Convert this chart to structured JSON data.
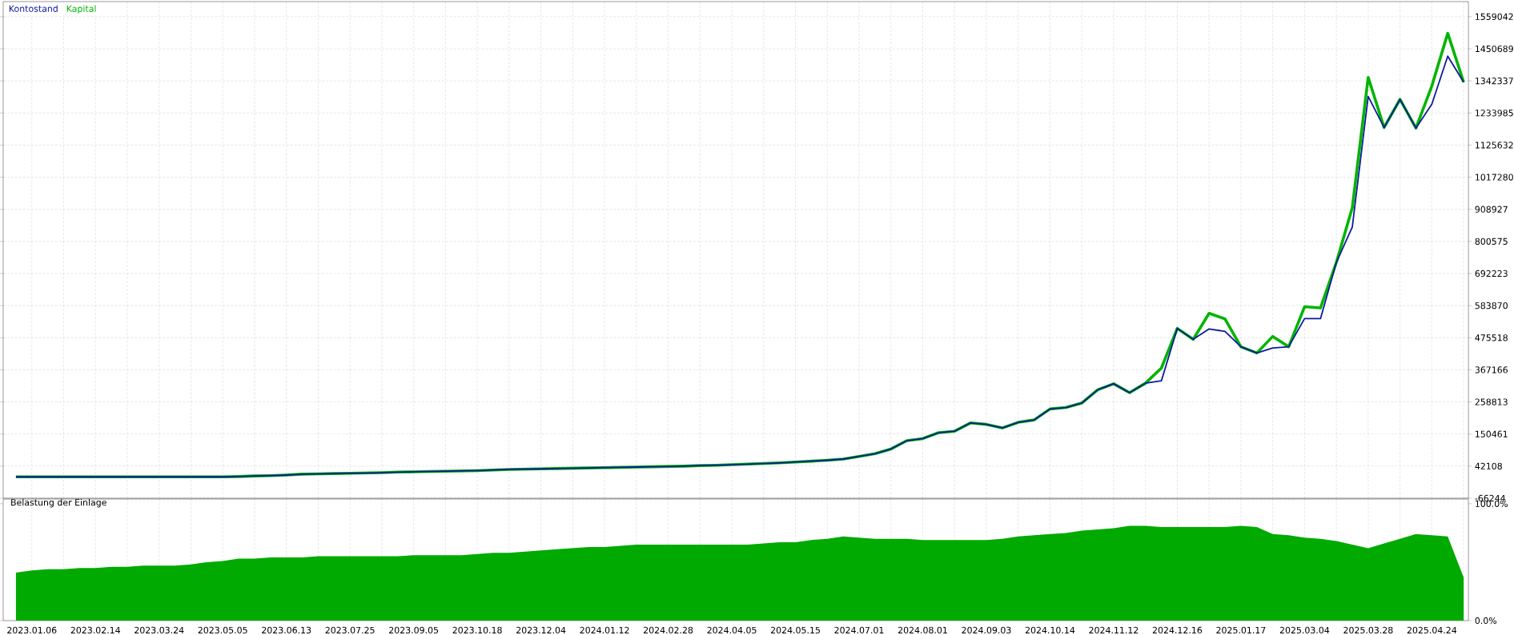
{
  "chart_data": [
    {
      "type": "line",
      "ylim": [
        -66244,
        1610000
      ],
      "grid": true,
      "legend": "top left",
      "tick_labels": "y",
      "categories": [
        null,
        "2023.01.06",
        null,
        null,
        null,
        "2023.02.14",
        null,
        null,
        null,
        "2023.03.24",
        null,
        null,
        null,
        "2023.05.05",
        null,
        null,
        null,
        "2023.06.13",
        null,
        null,
        null,
        "2023.07.25",
        null,
        null,
        null,
        "2023.09.05",
        null,
        null,
        null,
        "2023.10.18",
        null,
        null,
        null,
        "2023.12.04",
        null,
        null,
        null,
        "2024.01.12",
        null,
        null,
        null,
        "2024.02.28",
        null,
        null,
        null,
        "2024.04.05",
        null,
        null,
        null,
        "2024.05.15",
        null,
        null,
        null,
        "2024.07.01",
        null,
        null,
        null,
        "2024.08.01",
        null,
        null,
        null,
        "2024.09.03",
        null,
        null,
        null,
        "2024.10.14",
        null,
        null,
        null,
        "2024.11.12",
        null,
        null,
        null,
        "2024.12.16",
        null,
        null,
        null,
        "2025.01.17",
        null,
        null,
        null,
        "2025.03.04",
        null,
        null,
        null,
        "2025.03.28",
        null,
        null,
        null,
        "2025.04.24",
        null,
        null
      ],
      "yticks": [
        -66244,
        42108,
        150461,
        258813,
        367166,
        475518,
        583870,
        692223,
        800575,
        908927,
        1017280,
        1125632,
        1233985,
        1342337,
        1450689,
        1559042
      ],
      "series": [
        {
          "name": "Kontostand",
          "color": "#0c1a9c",
          "values": [
            6000,
            6000,
            6000,
            6000,
            6000,
            6000,
            6000,
            6000,
            6000,
            6000,
            6000,
            6000,
            6000,
            6000,
            7000,
            9000,
            10000,
            12000,
            15000,
            16000,
            17000,
            18000,
            19000,
            20000,
            22000,
            23000,
            24000,
            25000,
            26000,
            27000,
            29000,
            31000,
            32000,
            33000,
            34000,
            35000,
            36000,
            37000,
            38000,
            39000,
            40000,
            41000,
            42000,
            44000,
            45000,
            47000,
            49000,
            51000,
            53000,
            56000,
            59000,
            62000,
            66000,
            75000,
            84000,
            100000,
            128000,
            135000,
            155000,
            160000,
            188000,
            183000,
            171000,
            190000,
            198000,
            235000,
            240000,
            255000,
            300000,
            320000,
            290000,
            322000,
            330000,
            507000,
            470000,
            505000,
            497000,
            445000,
            424000,
            441000,
            445000,
            540000,
            540000,
            730000,
            849000,
            1290000,
            1185000,
            1280000,
            1183000,
            1264000,
            1426000,
            1338000
          ]
        },
        {
          "name": "Kapital",
          "color": "#00b400",
          "values": [
            6000,
            6000,
            6000,
            6000,
            6000,
            6000,
            6000,
            6000,
            6000,
            6000,
            6000,
            6000,
            6000,
            6000,
            7000,
            9000,
            10000,
            12000,
            15000,
            16000,
            17000,
            18000,
            19000,
            20000,
            22000,
            23000,
            24000,
            25000,
            26000,
            27000,
            29000,
            31000,
            32000,
            33000,
            34000,
            35000,
            36000,
            37000,
            38000,
            39000,
            40000,
            41000,
            42000,
            44000,
            45000,
            47000,
            49000,
            51000,
            53000,
            56000,
            59000,
            62000,
            66000,
            75000,
            84000,
            100000,
            128000,
            135000,
            155000,
            160000,
            188000,
            183000,
            171000,
            190000,
            198000,
            235000,
            240000,
            255000,
            300000,
            320000,
            290000,
            322000,
            373000,
            507000,
            470000,
            558000,
            539000,
            445000,
            424000,
            480000,
            445000,
            580000,
            576000,
            730000,
            914000,
            1354000,
            1185000,
            1280000,
            1183000,
            1325000,
            1503000,
            1338000
          ]
        }
      ]
    },
    {
      "type": "area",
      "title": "Belastung der Einlage",
      "ylim": [
        0,
        104
      ],
      "grid": "x",
      "color": "#00aa00",
      "categories": [
        null,
        "2023.01.06",
        null,
        null,
        null,
        "2023.02.14",
        null,
        null,
        null,
        "2023.03.24",
        null,
        null,
        null,
        "2023.05.05",
        null,
        null,
        null,
        "2023.06.13",
        null,
        null,
        null,
        "2023.07.25",
        null,
        null,
        null,
        "2023.09.05",
        null,
        null,
        null,
        "2023.10.18",
        null,
        null,
        null,
        "2023.12.04",
        null,
        null,
        null,
        "2024.01.12",
        null,
        null,
        null,
        "2024.02.28",
        null,
        null,
        null,
        "2024.04.05",
        null,
        null,
        null,
        "2024.05.15",
        null,
        null,
        null,
        "2024.07.01",
        null,
        null,
        null,
        "2024.08.01",
        null,
        null,
        null,
        "2024.09.03",
        null,
        null,
        null,
        "2024.10.14",
        null,
        null,
        null,
        "2024.11.12",
        null,
        null,
        null,
        "2024.12.16",
        null,
        null,
        null,
        "2025.01.17",
        null,
        null,
        null,
        "2025.03.04",
        null,
        null,
        null,
        "2025.03.28",
        null,
        null,
        null,
        "2025.04.24",
        null,
        null
      ],
      "yticks": [
        {
          "value": 0,
          "label": "0.0%"
        },
        {
          "value": 100,
          "label": "100.0%"
        }
      ],
      "values": [
        41,
        43,
        44,
        44,
        45,
        45,
        46,
        46,
        47,
        47,
        47,
        48,
        50,
        51,
        53,
        53,
        54,
        54,
        54,
        55,
        55,
        55,
        55,
        55,
        55,
        56,
        56,
        56,
        56,
        57,
        58,
        58,
        59,
        60,
        61,
        62,
        63,
        63,
        64,
        65,
        65,
        65,
        65,
        65,
        65,
        65,
        65,
        66,
        67,
        67,
        69,
        70,
        72,
        71,
        70,
        70,
        70,
        69,
        69,
        69,
        69,
        69,
        70,
        72,
        73,
        74,
        75,
        77,
        78,
        79,
        81,
        81,
        80,
        80,
        80,
        80,
        80,
        81,
        80,
        74,
        73,
        71,
        70,
        68,
        65,
        62,
        66,
        70,
        74,
        73,
        72,
        37
      ]
    }
  ]
}
